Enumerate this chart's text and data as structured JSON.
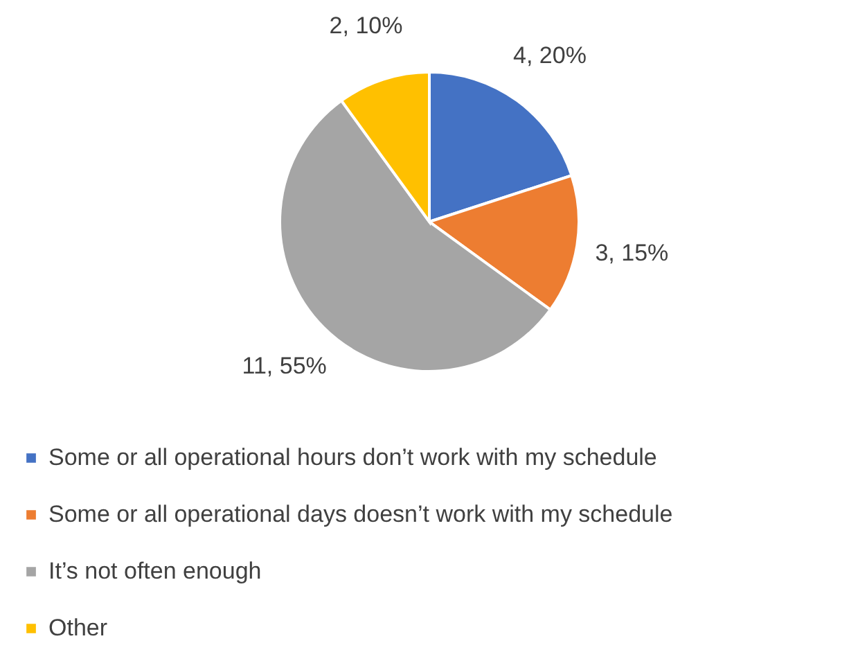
{
  "chart_data": {
    "type": "pie",
    "categories": [
      "Some or all operational hours don’t work with my schedule",
      "Some or all operational days doesn’t work with my schedule",
      "It’s not often enough",
      "Other"
    ],
    "values": [
      4,
      3,
      11,
      2
    ],
    "colors": [
      "#4472c4",
      "#ed7d31",
      "#a5a5a5",
      "#ffc000"
    ],
    "value_labels": [
      "4, 20%",
      "3, 15%",
      "11, 55%",
      "2, 10%"
    ],
    "legend": "bottom"
  }
}
